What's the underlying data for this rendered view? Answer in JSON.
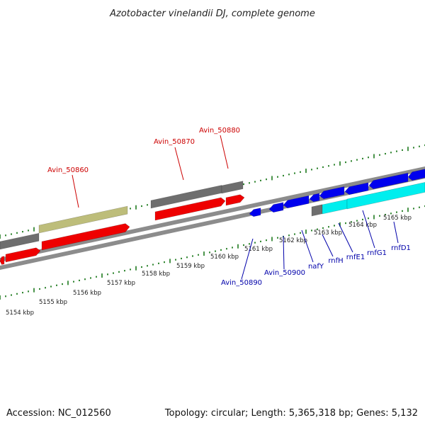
{
  "title": "Azotobacter vinelandii DJ, complete genome",
  "footer": {
    "accession": "Accession: NC_012560",
    "summary": "Topology: circular; Length: 5,365,318 bp; Genes: 5,132"
  },
  "colors": {
    "label_red": "#cc0000",
    "label_blue": "#0000aa",
    "tick_green": "#1e7a1e",
    "backbone": "#8c8c8c",
    "gene_grey": "#6e6e6e",
    "gene_olive": "#bdbd7a",
    "gene_red": "#ee0000",
    "gene_blue": "#0000ee",
    "gene_cyan": "#00eeee"
  },
  "ticks": [
    {
      "label": "5154 kbp"
    },
    {
      "label": "5155 kbp"
    },
    {
      "label": "5156 kbp"
    },
    {
      "label": "5157 kbp"
    },
    {
      "label": "5158 kbp"
    },
    {
      "label": "5159 kbp"
    },
    {
      "label": "5160 kbp"
    },
    {
      "label": "5161 kbp"
    },
    {
      "label": "5162 kbp"
    },
    {
      "label": "5163 kbp"
    },
    {
      "label": "5164 kbp"
    },
    {
      "label": "5165 kbp"
    }
  ],
  "gene_labels": [
    {
      "name": "Avin_50860",
      "group": "top"
    },
    {
      "name": "Avin_50870",
      "group": "top"
    },
    {
      "name": "Avin_50880",
      "group": "top"
    },
    {
      "name": "Avin_50890",
      "group": "bottom"
    },
    {
      "name": "Avin_50900",
      "group": "bottom"
    },
    {
      "name": "nafY",
      "group": "bottom"
    },
    {
      "name": "rnfH",
      "group": "bottom"
    },
    {
      "name": "rnfE1",
      "group": "bottom"
    },
    {
      "name": "rnfG1",
      "group": "bottom"
    },
    {
      "name": "rnfD1",
      "group": "bottom"
    }
  ]
}
